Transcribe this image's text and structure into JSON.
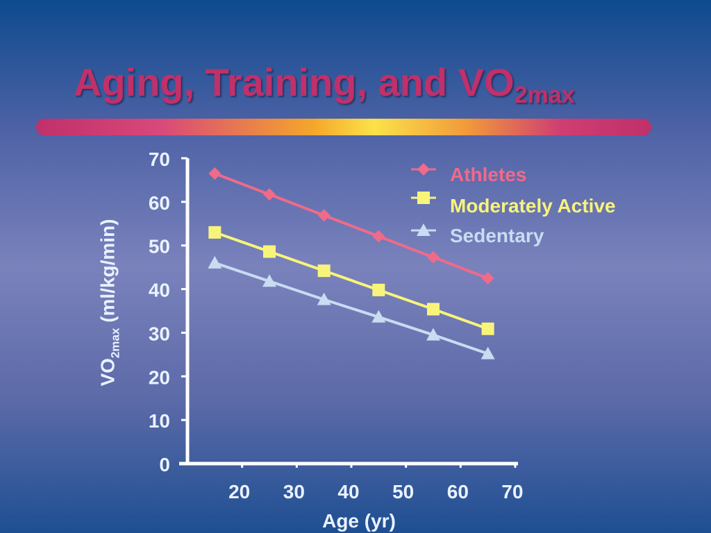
{
  "slide": {
    "title_main": "Aging, Training, and VO",
    "title_sub": "2max"
  },
  "chart_data": {
    "type": "line",
    "title": "Aging, Training, and VO2max",
    "xlabel": "Age (yr)",
    "ylabel_main": "VO",
    "ylabel_sub": "2max",
    "ylabel_units": " (ml/kg/min)",
    "xlim": [
      10,
      70
    ],
    "ylim": [
      0,
      70
    ],
    "x_ticks": [
      20,
      30,
      40,
      50,
      60,
      70
    ],
    "y_ticks": [
      0,
      10,
      20,
      30,
      40,
      50,
      60,
      70
    ],
    "x": [
      15,
      25,
      35,
      45,
      55,
      65
    ],
    "series": [
      {
        "name": "Athletes",
        "marker": "diamond",
        "color": "#f06a8a",
        "values": [
          66.5,
          61.7,
          56.9,
          52.1,
          47.3,
          42.5
        ]
      },
      {
        "name": "Moderately Active",
        "marker": "square",
        "color": "#f8f47a",
        "values": [
          53,
          48.6,
          44.2,
          39.8,
          35.4,
          30.9
        ]
      },
      {
        "name": "Sedentary",
        "marker": "triangle",
        "color": "#c8dcf2",
        "values": [
          46,
          41.8,
          37.6,
          33.6,
          29.5,
          25.2
        ]
      }
    ],
    "legend_position": "top-right",
    "axis_color": "#ffffff",
    "tick_label_color": "#eaf2ff"
  }
}
